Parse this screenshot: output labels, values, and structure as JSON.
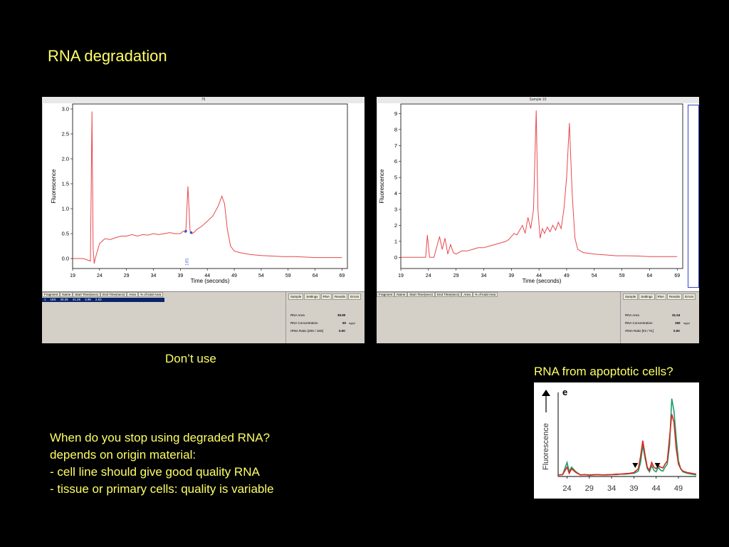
{
  "slide": {
    "title": "RNA degradation",
    "caption_left": "Don’t use",
    "caption_right": "RNA from apoptotic cells?",
    "notes": [
      "When do you stop using degraded RNA?",
      "depends on origin material:",
      "- cell line should give good quality RNA",
      "- tissue or primary cells: quality is variable"
    ]
  },
  "colors": {
    "background": "#000000",
    "text": "#ffff66",
    "trace": "#e8484d",
    "marker": "#3355cc",
    "green_trace": "#1a9e6e",
    "red_trace": "#d9261c"
  },
  "panel_left": {
    "header": "79",
    "table_headers": [
      "Fragment",
      "Name",
      "Start Time(secs)",
      "End Time(secs)",
      "Area",
      "% of total Area"
    ],
    "table_row": [
      "1",
      "18S",
      "40.35",
      "41.25",
      "3.96",
      "2.63"
    ],
    "tabs": [
      "Sample",
      "Settings",
      "RNA",
      "Results",
      "Errors"
    ],
    "results": [
      {
        "label": "RNA Area",
        "value": "35.90",
        "unit": ""
      },
      {
        "label": "RNA Concentration",
        "value": "50",
        "unit": "ng/µl"
      },
      {
        "label": "rRNA Ratio [28S / 18S]",
        "value": "0.00",
        "unit": ""
      }
    ],
    "peak_label": "18S"
  },
  "panel_right": {
    "header": "Sample 10",
    "table_headers": [
      "Fragment",
      "Name",
      "Start Time(secs)",
      "End Time(secs)",
      "Area",
      "% of total Area"
    ],
    "tabs": [
      "Sample",
      "Settings",
      "RNA",
      "Results",
      "Errors"
    ],
    "results": [
      {
        "label": "RNA Area",
        "value": "31.04",
        "unit": ""
      },
      {
        "label": "RNA Concentration",
        "value": "150",
        "unit": "ng/µl"
      },
      {
        "label": "rRNA Ratio [#2 / #1]",
        "value": "0.00",
        "unit": ""
      }
    ]
  },
  "chart_data": [
    {
      "type": "line",
      "xlabel": "Time (seconds)",
      "ylabel": "Fluorescence",
      "xlim": [
        19,
        70
      ],
      "ylim": [
        -0.2,
        3.1
      ],
      "xticks": [
        19,
        24,
        29,
        34,
        39,
        44,
        49,
        54,
        59,
        64,
        69
      ],
      "yticks": [
        0.0,
        0.5,
        1.0,
        1.5,
        2.0,
        2.5,
        3.0
      ],
      "ytick_labels": [
        "0.0",
        "0.5",
        "1.0",
        "1.5",
        "2.0",
        "2.5",
        "3.0"
      ],
      "series": [
        {
          "x": [
            19,
            21,
            22.3,
            22.6,
            22.8,
            23.0,
            23.2,
            23.6,
            24,
            24.5,
            25,
            26,
            27,
            28,
            29,
            30,
            31,
            32,
            33,
            34,
            35,
            36,
            37,
            38,
            39,
            39.5,
            40,
            40.4,
            40.8,
            41.1,
            41.5,
            42,
            43,
            44,
            45,
            46,
            46.7,
            47.2,
            47.7,
            48.3,
            49,
            50,
            52,
            54,
            56,
            58,
            60,
            62,
            64,
            66,
            68,
            69
          ],
          "y": [
            0.0,
            0.0,
            -0.05,
            2.95,
            0.2,
            -0.1,
            0.0,
            0.15,
            0.3,
            0.35,
            0.4,
            0.38,
            0.42,
            0.45,
            0.45,
            0.48,
            0.45,
            0.48,
            0.47,
            0.5,
            0.48,
            0.5,
            0.52,
            0.5,
            0.5,
            0.55,
            0.52,
            1.45,
            0.55,
            0.5,
            0.52,
            0.58,
            0.65,
            0.75,
            0.85,
            1.05,
            1.25,
            1.1,
            0.6,
            0.25,
            0.15,
            0.12,
            0.08,
            0.06,
            0.05,
            0.04,
            0.04,
            0.03,
            0.02,
            0.02,
            0.02,
            0.02
          ]
        }
      ],
      "markers": [
        {
          "x": 40.0,
          "y": 0.55
        },
        {
          "x": 41.0,
          "y": 0.52
        }
      ],
      "annotations": [
        {
          "text": "18S",
          "x": 40.5
        }
      ]
    },
    {
      "type": "line",
      "xlabel": "Time (seconds)",
      "ylabel": "Fluorescence",
      "xlim": [
        19,
        70
      ],
      "ylim": [
        -0.7,
        9.6
      ],
      "xticks": [
        19,
        24,
        29,
        34,
        39,
        44,
        49,
        54,
        59,
        64,
        69
      ],
      "yticks": [
        0,
        1,
        2,
        3,
        4,
        5,
        6,
        7,
        8,
        9
      ],
      "series": [
        {
          "x": [
            19,
            23.5,
            23.8,
            24.2,
            24.6,
            25,
            26,
            26.5,
            27,
            27.5,
            28,
            28.5,
            29,
            30,
            31,
            32,
            33,
            34,
            35,
            36,
            37,
            38,
            38.5,
            39,
            39.5,
            40,
            40.5,
            41,
            41.5,
            42,
            42.5,
            43,
            43.5,
            43.8,
            44.2,
            44.6,
            45,
            45.5,
            46,
            46.5,
            47,
            47.5,
            48,
            48.5,
            49,
            49.5,
            50,
            50.5,
            51,
            52,
            54,
            56,
            58,
            60,
            62,
            64,
            66,
            68,
            69
          ],
          "y": [
            0.0,
            0.0,
            1.4,
            0.0,
            0.0,
            0.0,
            1.3,
            0.5,
            1.2,
            0.2,
            0.8,
            0.3,
            0.2,
            0.4,
            0.4,
            0.5,
            0.6,
            0.6,
            0.7,
            0.8,
            0.9,
            1.0,
            1.1,
            1.3,
            1.5,
            1.4,
            1.7,
            2.0,
            1.5,
            2.5,
            1.8,
            3.0,
            9.2,
            3.0,
            1.2,
            1.8,
            1.5,
            1.9,
            1.6,
            2.0,
            1.7,
            2.2,
            1.8,
            3.0,
            5.0,
            8.4,
            4.0,
            1.2,
            0.5,
            0.3,
            0.2,
            0.15,
            0.1,
            0.1,
            0.08,
            0.05,
            0.05,
            0.05,
            0.05
          ]
        }
      ]
    },
    {
      "type": "line",
      "ylabel": "Fluorescence",
      "panel_label": "e",
      "xlim": [
        22,
        53
      ],
      "xticks": [
        24,
        29,
        34,
        39,
        44,
        49
      ],
      "series": [
        {
          "color": "green",
          "x": [
            22,
            23,
            24,
            24.5,
            25,
            26,
            27,
            28,
            29,
            30,
            31,
            32,
            33,
            34,
            35,
            36,
            37,
            38,
            39,
            40,
            40.5,
            41,
            41.5,
            42,
            42.5,
            43,
            43.5,
            44,
            44.5,
            45,
            45.5,
            46,
            46.5,
            47,
            47.5,
            48,
            48.5,
            49,
            49.5,
            50,
            51,
            52,
            53
          ],
          "y": [
            0.1,
            0.12,
            0.9,
            0.3,
            0.6,
            0.3,
            0.1,
            0.12,
            0.08,
            0.1,
            0.12,
            0.1,
            0.1,
            0.12,
            0.12,
            0.15,
            0.15,
            0.18,
            0.2,
            0.35,
            0.9,
            2.0,
            1.2,
            0.5,
            0.3,
            0.7,
            0.4,
            0.3,
            0.6,
            0.4,
            0.35,
            0.6,
            0.8,
            2.0,
            5.0,
            4.2,
            2.5,
            1.0,
            0.5,
            0.3,
            0.2,
            0.15,
            0.1
          ]
        },
        {
          "color": "red",
          "x": [
            22,
            23,
            24,
            24.5,
            25,
            26,
            27,
            28,
            29,
            30,
            31,
            32,
            33,
            34,
            35,
            36,
            37,
            38,
            39,
            40,
            40.5,
            41,
            41.5,
            42,
            42.5,
            43,
            43.5,
            44,
            44.5,
            45,
            45.5,
            46,
            46.5,
            47,
            47.5,
            48,
            48.5,
            49,
            49.5,
            50,
            51,
            52,
            53
          ],
          "y": [
            0.1,
            0.12,
            0.6,
            0.2,
            0.5,
            0.25,
            0.1,
            0.12,
            0.1,
            0.12,
            0.12,
            0.1,
            0.12,
            0.12,
            0.15,
            0.15,
            0.18,
            0.2,
            0.25,
            0.5,
            1.3,
            2.3,
            1.4,
            0.6,
            0.4,
            0.9,
            0.6,
            0.5,
            0.7,
            0.6,
            0.55,
            0.8,
            1.0,
            2.5,
            4.0,
            3.5,
            1.8,
            0.8,
            0.5,
            0.35,
            0.25,
            0.2,
            0.15
          ]
        }
      ],
      "markers": [
        {
          "x": 39.3
        },
        {
          "x": 44.3
        }
      ]
    }
  ]
}
